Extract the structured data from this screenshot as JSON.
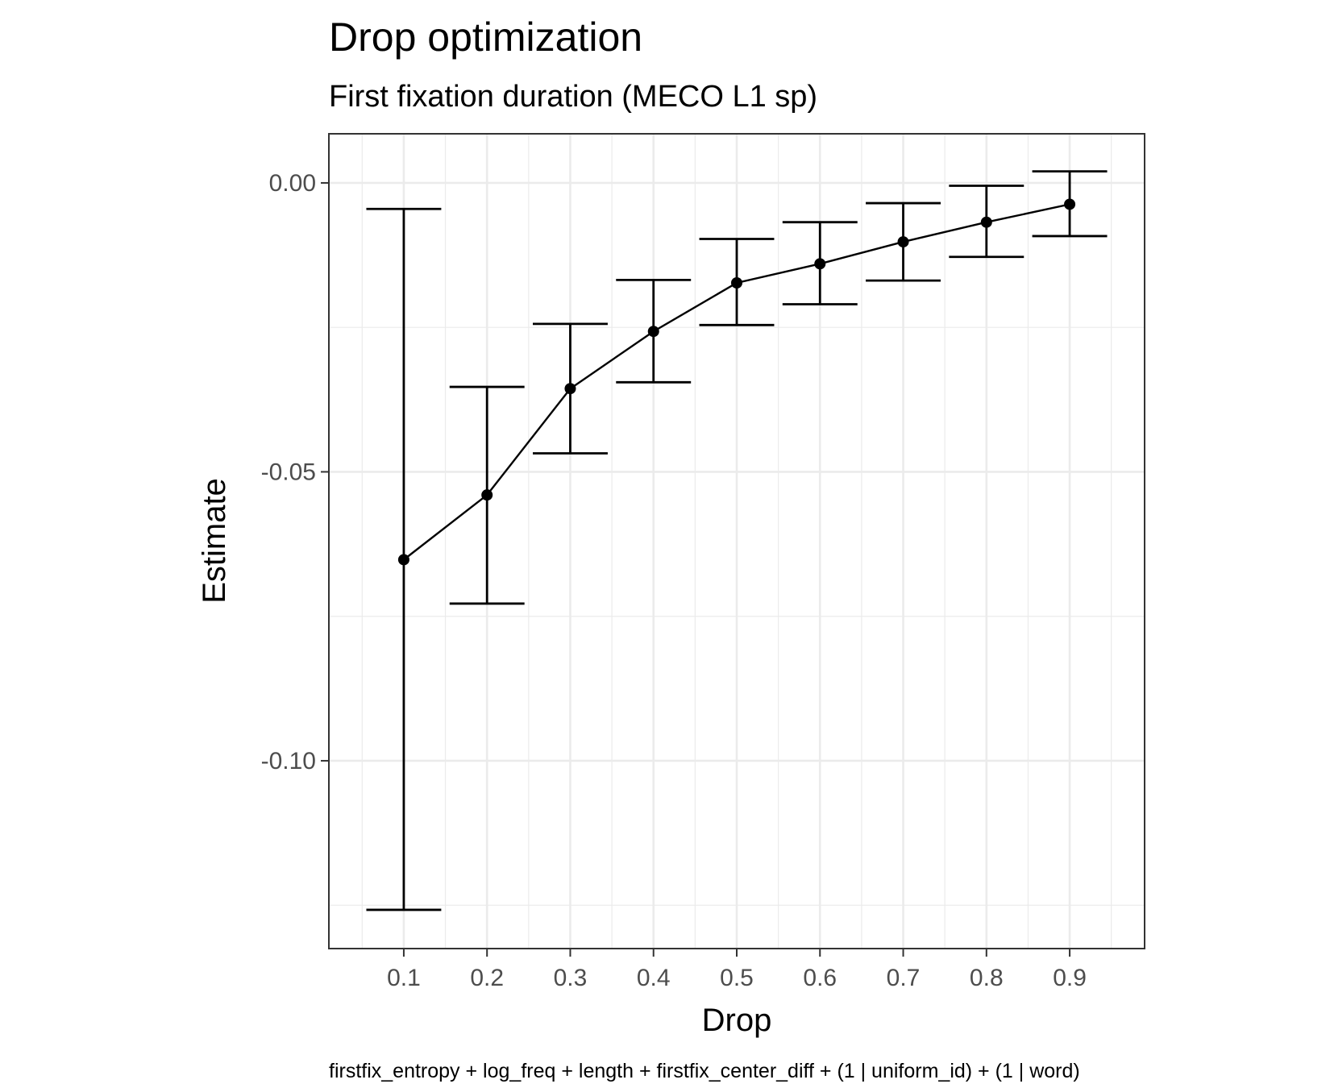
{
  "chart_data": {
    "type": "line",
    "title": "Drop optimization",
    "subtitle": "First fixation duration (MECO L1 sp)",
    "xlabel": "Drop",
    "ylabel": "Estimate",
    "caption": "firstfix_entropy + log_freq + length + firstfix_center_diff + (1 | uniform_id) + (1 | word)",
    "x_ticks": [
      "0.1",
      "0.2",
      "0.3",
      "0.4",
      "0.5",
      "0.6",
      "0.7",
      "0.8",
      "0.9"
    ],
    "y_ticks": [
      "0.00",
      "-0.05",
      "-0.10"
    ],
    "y_tick_values": [
      0.0,
      -0.05,
      -0.1
    ],
    "xlim": [
      0.01,
      0.99
    ],
    "ylim": [
      -0.1325,
      0.0085
    ],
    "grid": true,
    "series": [
      {
        "x": [
          0.1,
          0.2,
          0.3,
          0.4,
          0.5,
          0.6,
          0.7,
          0.8,
          0.9
        ],
        "y": [
          -0.0652,
          -0.054,
          -0.0356,
          -0.0257,
          -0.0173,
          -0.014,
          -0.0102,
          -0.0068,
          -0.0037
        ],
        "lower": [
          -0.1258,
          -0.0728,
          -0.0468,
          -0.0345,
          -0.0246,
          -0.021,
          -0.0169,
          -0.0128,
          -0.0092
        ],
        "upper": [
          -0.0045,
          -0.0353,
          -0.0244,
          -0.0168,
          -0.0097,
          -0.0068,
          -0.0035,
          -0.0005,
          0.002
        ]
      }
    ],
    "colors": {
      "line": "#000000",
      "grid": "#ebebeb",
      "panel_border": "#333333",
      "tick_text": "#4d4d4d"
    }
  }
}
